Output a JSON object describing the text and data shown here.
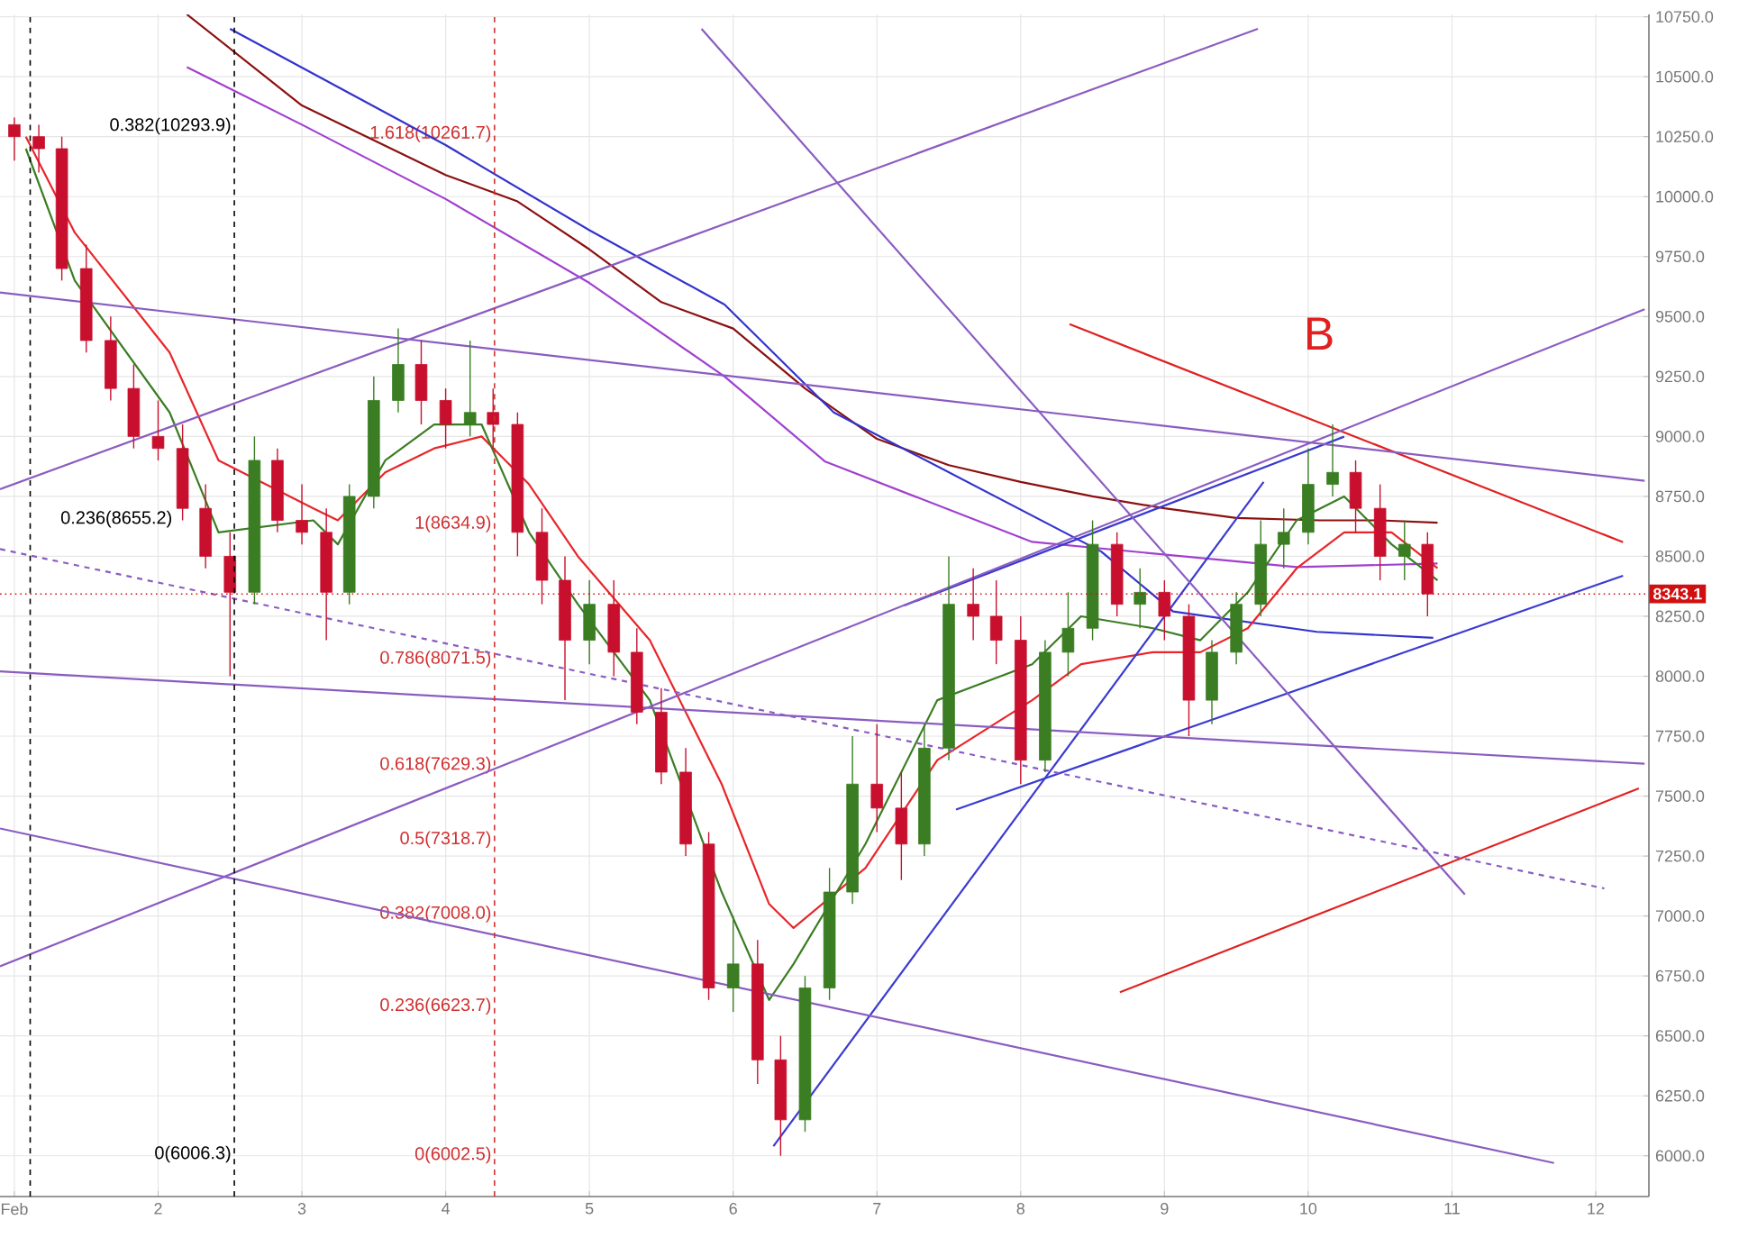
{
  "chart_data": {
    "type": "candlestick",
    "x": [
      1.0,
      1.17,
      1.33,
      1.5,
      1.67,
      1.83,
      2.0,
      2.17,
      2.33,
      2.5,
      2.67,
      2.83,
      3.0,
      3.17,
      3.33,
      3.5,
      3.67,
      3.83,
      4.0,
      4.17,
      4.33,
      4.5,
      4.67,
      4.83,
      5.0,
      5.17,
      5.33,
      5.5,
      5.67,
      5.83,
      6.0,
      6.17,
      6.33,
      6.5,
      6.67,
      6.83,
      7.0,
      7.17,
      7.33,
      7.5,
      7.67,
      7.83,
      8.0,
      8.17,
      8.33,
      8.5,
      8.67,
      8.83,
      9.0,
      9.17,
      9.33,
      9.5,
      9.67,
      9.83,
      10.0,
      10.17,
      10.33,
      10.5,
      10.67,
      10.83
    ],
    "ohlc": [
      [
        10300,
        10330,
        10150,
        10250
      ],
      [
        10250,
        10300,
        10100,
        10200
      ],
      [
        10200,
        10250,
        9650,
        9700
      ],
      [
        9700,
        9800,
        9350,
        9400
      ],
      [
        9400,
        9500,
        9150,
        9200
      ],
      [
        9200,
        9300,
        8950,
        9000
      ],
      [
        9000,
        9150,
        8900,
        8950
      ],
      [
        8950,
        9050,
        8650,
        8700
      ],
      [
        8700,
        8800,
        8450,
        8500
      ],
      [
        8500,
        8600,
        8000,
        8350
      ],
      [
        8350,
        9000,
        8300,
        8900
      ],
      [
        8900,
        8950,
        8600,
        8650
      ],
      [
        8650,
        8800,
        8550,
        8600
      ],
      [
        8600,
        8700,
        8150,
        8350
      ],
      [
        8350,
        8800,
        8300,
        8750
      ],
      [
        8750,
        9250,
        8700,
        9150
      ],
      [
        9150,
        9450,
        9100,
        9300
      ],
      [
        9300,
        9400,
        9050,
        9150
      ],
      [
        9150,
        9200,
        8950,
        9050
      ],
      [
        9050,
        9400,
        9000,
        9100
      ],
      [
        9100,
        9200,
        8950,
        9050
      ],
      [
        9050,
        9100,
        8500,
        8600
      ],
      [
        8600,
        8700,
        8300,
        8400
      ],
      [
        8400,
        8500,
        7900,
        8150
      ],
      [
        8150,
        8400,
        8050,
        8300
      ],
      [
        8300,
        8400,
        8000,
        8100
      ],
      [
        8100,
        8200,
        7800,
        7850
      ],
      [
        7850,
        7950,
        7550,
        7600
      ],
      [
        7600,
        7700,
        7250,
        7300
      ],
      [
        7300,
        7350,
        6650,
        6700
      ],
      [
        6700,
        7000,
        6600,
        6800
      ],
      [
        6800,
        6900,
        6300,
        6400
      ],
      [
        6400,
        6500,
        6000,
        6150
      ],
      [
        6150,
        6750,
        6100,
        6700
      ],
      [
        6700,
        7200,
        6650,
        7100
      ],
      [
        7100,
        7750,
        7050,
        7550
      ],
      [
        7550,
        7800,
        7350,
        7450
      ],
      [
        7450,
        7600,
        7150,
        7300
      ],
      [
        7300,
        7800,
        7250,
        7700
      ],
      [
        7700,
        8500,
        7650,
        8300
      ],
      [
        8300,
        8450,
        8150,
        8250
      ],
      [
        8250,
        8400,
        8050,
        8150
      ],
      [
        8150,
        8250,
        7550,
        7650
      ],
      [
        7650,
        8150,
        7600,
        8100
      ],
      [
        8100,
        8350,
        8000,
        8200
      ],
      [
        8200,
        8650,
        8150,
        8550
      ],
      [
        8550,
        8600,
        8250,
        8300
      ],
      [
        8300,
        8450,
        8200,
        8350
      ],
      [
        8350,
        8400,
        8150,
        8250
      ],
      [
        8250,
        8300,
        7750,
        7900
      ],
      [
        7900,
        8150,
        7800,
        8100
      ],
      [
        8100,
        8350,
        8050,
        8300
      ],
      [
        8300,
        8650,
        8250,
        8550
      ],
      [
        8550,
        8700,
        8450,
        8600
      ],
      [
        8600,
        8950,
        8550,
        8800
      ],
      [
        8800,
        9050,
        8750,
        8850
      ],
      [
        8850,
        8900,
        8600,
        8700
      ],
      [
        8700,
        8800,
        8400,
        8500
      ],
      [
        8500,
        8650,
        8400,
        8550
      ],
      [
        8550,
        8600,
        8250,
        8343.1
      ]
    ],
    "colors": [
      "#c8102e",
      "#c8102e",
      "#c8102e",
      "#c8102e",
      "#c8102e",
      "#c8102e",
      "#c8102e",
      "#c8102e",
      "#c8102e",
      "#c8102e",
      "#3a7d22",
      "#c8102e",
      "#c8102e",
      "#c8102e",
      "#3a7d22",
      "#3a7d22",
      "#3a7d22",
      "#c8102e",
      "#c8102e",
      "#3a7d22",
      "#c8102e",
      "#c8102e",
      "#c8102e",
      "#c8102e",
      "#3a7d22",
      "#c8102e",
      "#c8102e",
      "#c8102e",
      "#c8102e",
      "#c8102e",
      "#3a7d22",
      "#c8102e",
      "#c8102e",
      "#3a7d22",
      "#3a7d22",
      "#3a7d22",
      "#c8102e",
      "#c8102e",
      "#3a7d22",
      "#3a7d22",
      "#c8102e",
      "#c8102e",
      "#c8102e",
      "#3a7d22",
      "#3a7d22",
      "#3a7d22",
      "#c8102e",
      "#3a7d22",
      "#c8102e",
      "#c8102e",
      "#3a7d22",
      "#3a7d22",
      "#3a7d22",
      "#3a7d22",
      "#3a7d22",
      "#3a7d22",
      "#c8102e",
      "#c8102e",
      "#3a7d22",
      "#c8102e"
    ],
    "series": [
      {
        "type": "line",
        "color": "#8b1010",
        "x": [
          2.2,
          3,
          4,
          4.5,
          5,
          5.5,
          6,
          6.5,
          7,
          7.5,
          8,
          8.5,
          9,
          9.5,
          10.08,
          10.5,
          10.9
        ],
        "values": [
          10760,
          10380,
          10090,
          9980,
          9780,
          9560,
          9450,
          9200,
          8990,
          8880,
          8810,
          8750,
          8700,
          8660,
          8650,
          8650,
          8640
        ]
      },
      {
        "type": "line",
        "color": "#3333cc",
        "x": [
          2.5,
          4,
          5,
          5.94,
          6.7,
          8.56,
          9.06,
          10.06,
          10.87
        ],
        "values": [
          10700,
          10215,
          9860,
          9550,
          9100,
          8520,
          8270,
          8185,
          8160
        ]
      },
      {
        "type": "line",
        "color": "#a040d0",
        "x": [
          2.2,
          3,
          4,
          5,
          5.94,
          6.64,
          8.08,
          9.92,
          10.9
        ],
        "values": [
          10540,
          10300,
          9990,
          9640,
          9250,
          8895,
          8560,
          8455,
          8470
        ]
      },
      {
        "type": "line",
        "color": "#e8262a",
        "x": [
          1.08,
          1.42,
          2.08,
          2.42,
          3.08,
          3.25,
          3.58,
          3.92,
          4.25,
          4.58,
          4.92,
          5.42,
          5.92,
          6.25,
          6.42,
          6.92,
          7.42,
          8.08,
          8.42,
          8.92,
          9.25,
          9.58,
          9.92,
          10.25,
          10.58,
          10.9
        ],
        "values": [
          10250,
          9850,
          9350,
          8900,
          8700,
          8650,
          8850,
          8950,
          9000,
          8800,
          8500,
          8150,
          7550,
          7050,
          6950,
          7200,
          7650,
          7900,
          8050,
          8100,
          8100,
          8200,
          8450,
          8600,
          8600,
          8450
        ]
      },
      {
        "type": "line",
        "color": "#3a7d22",
        "x": [
          1.08,
          1.42,
          2.08,
          2.42,
          3.08,
          3.25,
          3.58,
          3.92,
          4.25,
          4.58,
          4.92,
          5.42,
          5.92,
          6.25,
          6.42,
          6.92,
          7.42,
          8.08,
          8.42,
          8.92,
          9.25,
          9.58,
          9.92,
          10.25,
          10.58,
          10.9
        ],
        "values": [
          10200,
          9650,
          9100,
          8600,
          8650,
          8550,
          8900,
          9050,
          9050,
          8600,
          8300,
          7900,
          7100,
          6650,
          6800,
          7300,
          7900,
          8050,
          8250,
          8200,
          8150,
          8350,
          8650,
          8750,
          8550,
          8400
        ]
      },
      {
        "type": "line",
        "color": "#e02020",
        "x": [
          8.34,
          12.19
        ],
        "values": [
          9468,
          8559
        ]
      },
      {
        "type": "line",
        "color": "#3a3ad0",
        "x": [
          7.19,
          10.25
        ],
        "values": [
          8295,
          8999
        ]
      },
      {
        "type": "line",
        "color": "#3a3ad0",
        "x": [
          7.55,
          12.19
        ],
        "values": [
          7444,
          8419
        ]
      },
      {
        "type": "line",
        "color": "#e02020",
        "x": [
          8.69,
          12.3
        ],
        "values": [
          6682,
          7532
        ]
      },
      {
        "type": "line",
        "color": "#3a3ad0",
        "x": [
          6.28,
          9.69
        ],
        "values": [
          6040,
          8810
        ]
      },
      {
        "type": "line",
        "color": "#8a5cc0",
        "x": [
          0.9,
          12.34
        ],
        "values": [
          9600,
          8815
        ]
      },
      {
        "type": "line",
        "color": "#8a5cc0",
        "x": [
          0.9,
          9.65
        ],
        "values": [
          8780,
          10700
        ]
      },
      {
        "type": "line",
        "color": "#8a5cc0",
        "x": [
          0.9,
          12.34
        ],
        "values": [
          8020,
          7635
        ]
      },
      {
        "type": "line",
        "color": "#8a5cc0",
        "x": [
          0.9,
          11.71
        ],
        "values": [
          7365,
          5970
        ]
      },
      {
        "type": "line",
        "color": "#8a5cc0",
        "x": [
          0.9,
          12.34
        ],
        "values": [
          6790,
          9530
        ]
      },
      {
        "type": "line",
        "color": "#8a5cc0",
        "x": [
          5.78,
          11.09
        ],
        "values": [
          10700,
          7090
        ]
      },
      {
        "type": "line",
        "color": "#8a5cc0",
        "line_style": "dashed",
        "x": [
          0.9,
          12.06
        ],
        "values": [
          8530,
          7115
        ]
      }
    ],
    "ref_lines": [
      {
        "axis": "y",
        "value": 8343.1,
        "label": "8343.1",
        "color": "#d01010",
        "line_style": "dotted"
      },
      {
        "axis": "x",
        "value": 1.11,
        "color": "#000000",
        "line_style": "dashed"
      },
      {
        "axis": "x",
        "value": 2.53,
        "color": "#000000",
        "line_style": "dashed"
      },
      {
        "axis": "x",
        "value": 4.34,
        "color": "#d03030",
        "line_style": "dashed"
      }
    ],
    "annotations": [
      {
        "text": "0.382(10293.9)",
        "x": 2.53,
        "y": 10293.9
      },
      {
        "text": "0.236(8655.2)",
        "x": 2.12,
        "y": 8655.2
      },
      {
        "text": "0(6006.3)",
        "x": 2.53,
        "y": 6006.3
      },
      {
        "text": "1.618(10261.7)",
        "x": 4.34,
        "y": 10261.7
      },
      {
        "text": "1(8634.9)",
        "x": 4.34,
        "y": 8634.9
      },
      {
        "text": "0.786(8071.5)",
        "x": 4.34,
        "y": 8071.5
      },
      {
        "text": "0.618(7629.3)",
        "x": 4.34,
        "y": 7629.3
      },
      {
        "text": "0.5(7318.7)",
        "x": 4.34,
        "y": 7318.7
      },
      {
        "text": "0.382(7008.0)",
        "x": 4.34,
        "y": 7008.0
      },
      {
        "text": "0.236(6623.7)",
        "x": 4.34,
        "y": 6623.7
      },
      {
        "text": "0(6002.5)",
        "x": 4.34,
        "y": 6002.5
      },
      "B"
    ],
    "xlim": [
      0.9,
      12.37
    ],
    "ylim": [
      5830,
      10760
    ],
    "xticks": [
      {
        "value": 1,
        "label": "Feb"
      },
      2,
      3,
      4,
      5,
      6,
      7,
      8,
      9,
      10,
      11,
      12
    ],
    "yticks": [
      {
        "value": 6000,
        "label": "6000.0"
      },
      {
        "value": 6250,
        "label": "6250.0"
      },
      {
        "value": 6500,
        "label": "6500.0"
      },
      {
        "value": 6750,
        "label": "6750.0"
      },
      {
        "value": 7000,
        "label": "7000.0"
      },
      {
        "value": 7250,
        "label": "7250.0"
      },
      {
        "value": 7500,
        "label": "7500.0"
      },
      {
        "value": 7750,
        "label": "7750.0"
      },
      {
        "value": 8000,
        "label": "8000.0"
      },
      {
        "value": 8250,
        "label": "8250.0"
      },
      {
        "value": 8500,
        "label": "8500.0"
      },
      {
        "value": 8750,
        "label": "8750.0"
      },
      {
        "value": 9000,
        "label": "9000.0"
      },
      {
        "value": 9250,
        "label": "9250.0"
      },
      {
        "value": 9500,
        "label": "9500.0"
      },
      {
        "value": 9750,
        "label": "9750.0"
      },
      {
        "value": 10000,
        "label": "10000.0"
      },
      {
        "value": 10250,
        "label": "10250.0"
      },
      {
        "value": 10500,
        "label": "10500.0"
      },
      {
        "value": 10750,
        "label": "10750.0"
      }
    ],
    "grid": true
  }
}
